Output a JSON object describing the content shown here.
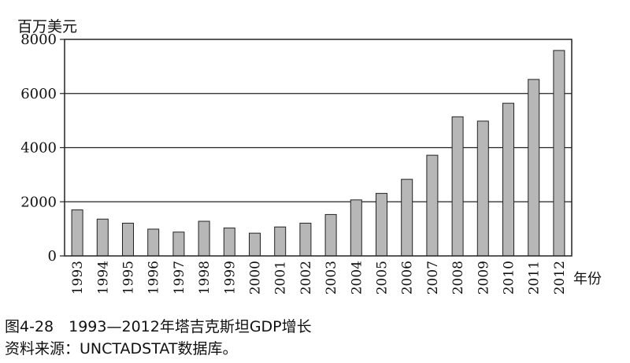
{
  "chart_data": {
    "type": "bar",
    "ylabel": "百万美元",
    "xlabel": "年份",
    "ylim": [
      0,
      8000
    ],
    "yticks": [
      0,
      2000,
      4000,
      6000,
      8000
    ],
    "grid": true,
    "categories": [
      "1993",
      "1994",
      "1995",
      "1996",
      "1997",
      "1998",
      "1999",
      "2000",
      "2001",
      "2002",
      "2003",
      "2004",
      "2005",
      "2006",
      "2007",
      "2008",
      "2009",
      "2010",
      "2011",
      "2012"
    ],
    "values": [
      1700,
      1360,
      1210,
      990,
      880,
      1280,
      1030,
      840,
      1070,
      1210,
      1530,
      2070,
      2310,
      2830,
      3720,
      5140,
      4980,
      5640,
      6520,
      7590
    ],
    "bar_color": "#b7b7b7"
  },
  "caption": {
    "title": "图4-28　1993—2012年塔吉克斯坦GDP增长",
    "source": "资料来源：UNCTADSTAT数据库。"
  }
}
